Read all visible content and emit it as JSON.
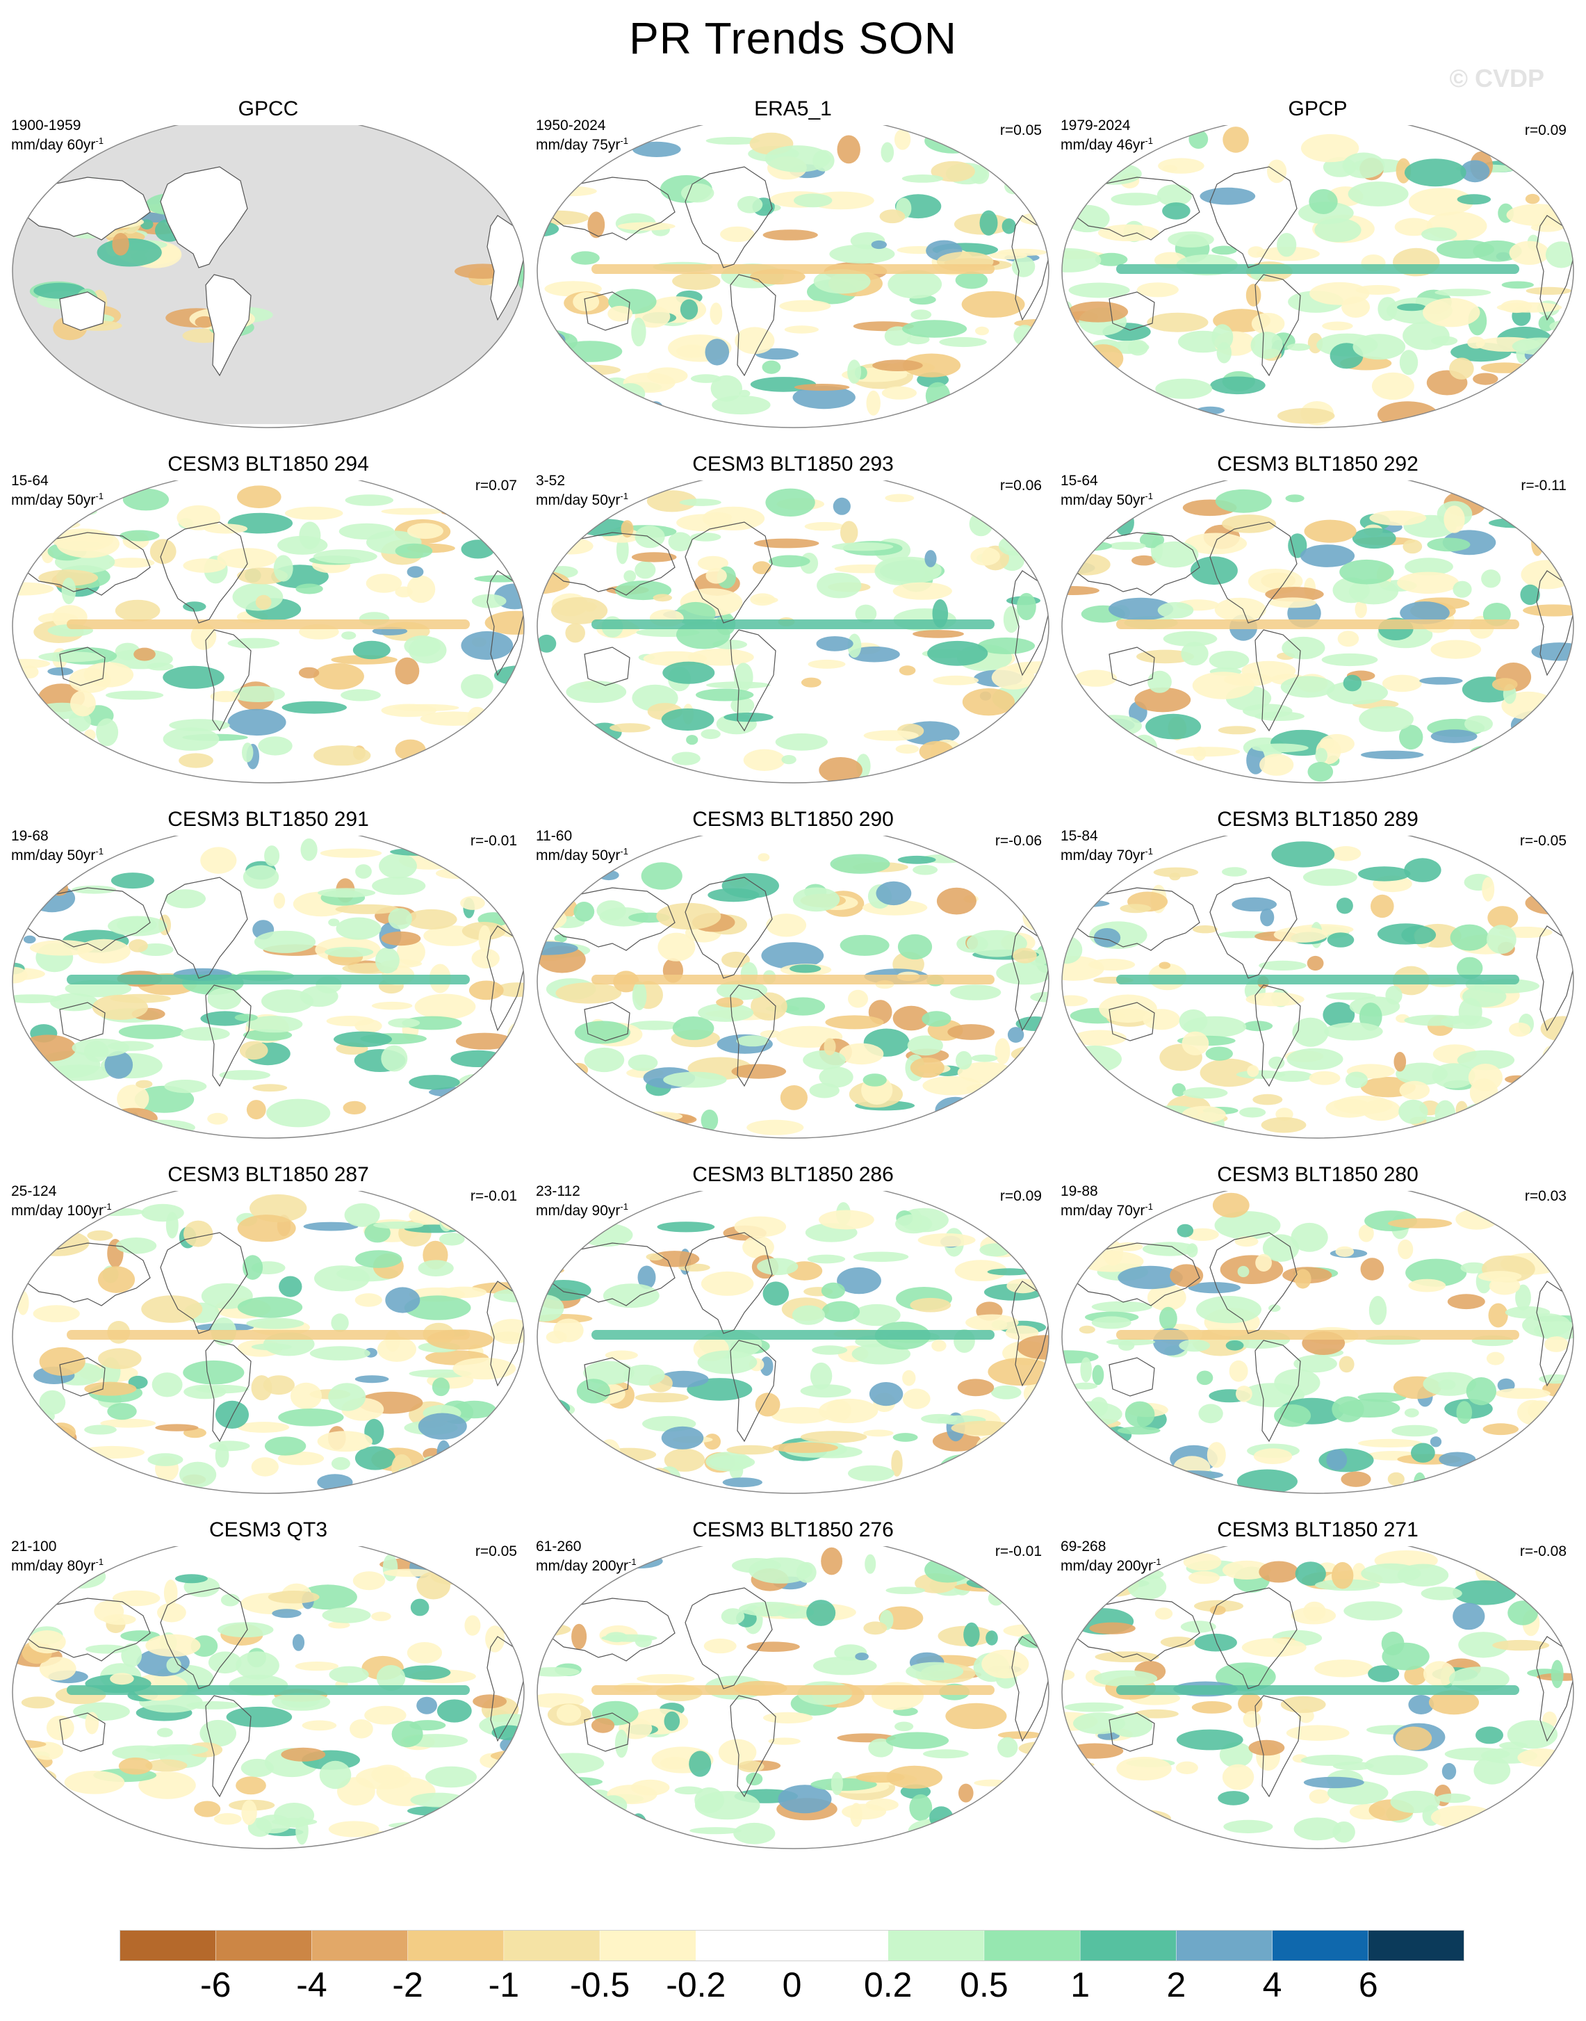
{
  "page": {
    "title": "PR Trends SON",
    "watermark": "© CVDP"
  },
  "panels": [
    {
      "title": "GPCC",
      "years": "1900-1959",
      "units_base": "mm/day 60yr",
      "units_exp": "-1",
      "r": "",
      "land_only": true
    },
    {
      "title": "ERA5_1",
      "years": "1950-2024",
      "units_base": "mm/day 75yr",
      "units_exp": "-1",
      "r": "r=0.05",
      "land_only": false
    },
    {
      "title": "GPCP",
      "years": "1979-2024",
      "units_base": "mm/day 46yr",
      "units_exp": "-1",
      "r": "r=0.09",
      "land_only": false
    },
    {
      "title": "CESM3 BLT1850 294",
      "years": "15-64",
      "units_base": "mm/day 50yr",
      "units_exp": "-1",
      "r": "r=0.07",
      "land_only": false
    },
    {
      "title": "CESM3 BLT1850 293",
      "years": "3-52",
      "units_base": "mm/day 50yr",
      "units_exp": "-1",
      "r": "r=0.06",
      "land_only": false
    },
    {
      "title": "CESM3 BLT1850 292",
      "years": "15-64",
      "units_base": "mm/day 50yr",
      "units_exp": "-1",
      "r": "r=-0.11",
      "land_only": false
    },
    {
      "title": "CESM3 BLT1850 291",
      "years": "19-68",
      "units_base": "mm/day 50yr",
      "units_exp": "-1",
      "r": "r=-0.01",
      "land_only": false
    },
    {
      "title": "CESM3 BLT1850 290",
      "years": "11-60",
      "units_base": "mm/day 50yr",
      "units_exp": "-1",
      "r": "r=-0.06",
      "land_only": false
    },
    {
      "title": "CESM3 BLT1850 289",
      "years": "15-84",
      "units_base": "mm/day 70yr",
      "units_exp": "-1",
      "r": "r=-0.05",
      "land_only": false
    },
    {
      "title": "CESM3 BLT1850 287",
      "years": "25-124",
      "units_base": "mm/day 100yr",
      "units_exp": "-1",
      "r": "r=-0.01",
      "land_only": false
    },
    {
      "title": "CESM3 BLT1850 286",
      "years": "23-112",
      "units_base": "mm/day 90yr",
      "units_exp": "-1",
      "r": "r=0.09",
      "land_only": false
    },
    {
      "title": "CESM3 BLT1850 280",
      "years": "19-88",
      "units_base": "mm/day 70yr",
      "units_exp": "-1",
      "r": "r=0.03",
      "land_only": false
    },
    {
      "title": "CESM3 QT3",
      "years": "21-100",
      "units_base": "mm/day 80yr",
      "units_exp": "-1",
      "r": "r=0.05",
      "land_only": false
    },
    {
      "title": "CESM3 BLT1850 276",
      "years": "61-260",
      "units_base": "mm/day 200yr",
      "units_exp": "-1",
      "r": "r=-0.01",
      "land_only": false
    },
    {
      "title": "CESM3 BLT1850 271",
      "years": "69-268",
      "units_base": "mm/day 200yr",
      "units_exp": "-1",
      "r": "r=-0.08",
      "land_only": false
    }
  ],
  "colorbar": {
    "colors": [
      "#b5692b",
      "#cc8645",
      "#e2a868",
      "#f3cd85",
      "#f5e3a5",
      "#fff5c7",
      "#ffffff",
      "#ffffff",
      "#c9f7cb",
      "#96e7b0",
      "#56c1a0",
      "#6fa8c8",
      "#0f68ad",
      "#0b3a5a"
    ],
    "labels": [
      "-6",
      "-4",
      "-2",
      "-1",
      "-0.5",
      "-0.2",
      "0",
      "0.2",
      "0.5",
      "1",
      "2",
      "4",
      "6"
    ]
  }
}
